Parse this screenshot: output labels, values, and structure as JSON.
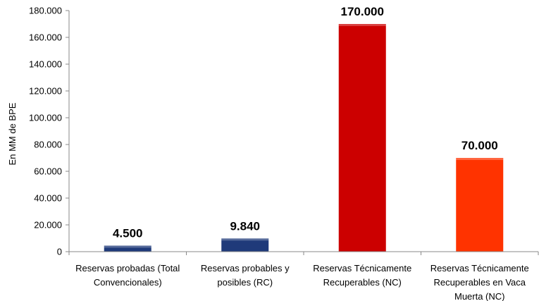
{
  "chart_data": {
    "type": "bar",
    "categories": [
      [
        "Reservas probadas (Total",
        "Convencionales)"
      ],
      [
        "Reservas probables y",
        "posibles (RC)"
      ],
      [
        "Reservas Técnicamente",
        "Recuperables (NC)"
      ],
      [
        "Reservas Técnicamente",
        "Recuperables en Vaca",
        "Muerta (NC)"
      ]
    ],
    "values": [
      4500,
      9840,
      170000,
      70000
    ],
    "data_labels": [
      "4.500",
      "9.840",
      "170.000",
      "70.000"
    ],
    "colors": [
      "#1f3a7a",
      "#1f3a7a",
      "#cc0000",
      "#ff3300"
    ],
    "ylabel": "En MM de BPE",
    "ylim": [
      0,
      180000
    ],
    "yticks": [
      0,
      20000,
      40000,
      60000,
      80000,
      100000,
      120000,
      140000,
      160000,
      180000
    ],
    "ytick_labels": [
      "0",
      "20.000",
      "40.000",
      "60.000",
      "80.000",
      "100.000",
      "120.000",
      "140.000",
      "160.000",
      "180.000"
    ],
    "grid": false,
    "legend": "none"
  }
}
